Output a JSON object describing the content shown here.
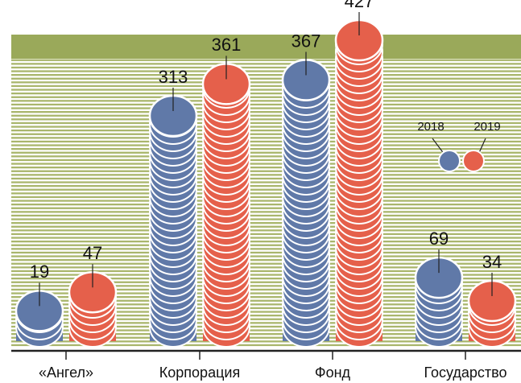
{
  "chart_data": {
    "type": "coin-stack",
    "categories": [
      "«Ангел»",
      "Корпорация",
      "Фонд",
      "Государство"
    ],
    "series": [
      {
        "name": "2018",
        "color": "#6079a8",
        "values": [
          19,
          313,
          367,
          69
        ]
      },
      {
        "name": "2019",
        "color": "#e5604b",
        "values": [
          47,
          361,
          427,
          34
        ]
      }
    ]
  }
}
